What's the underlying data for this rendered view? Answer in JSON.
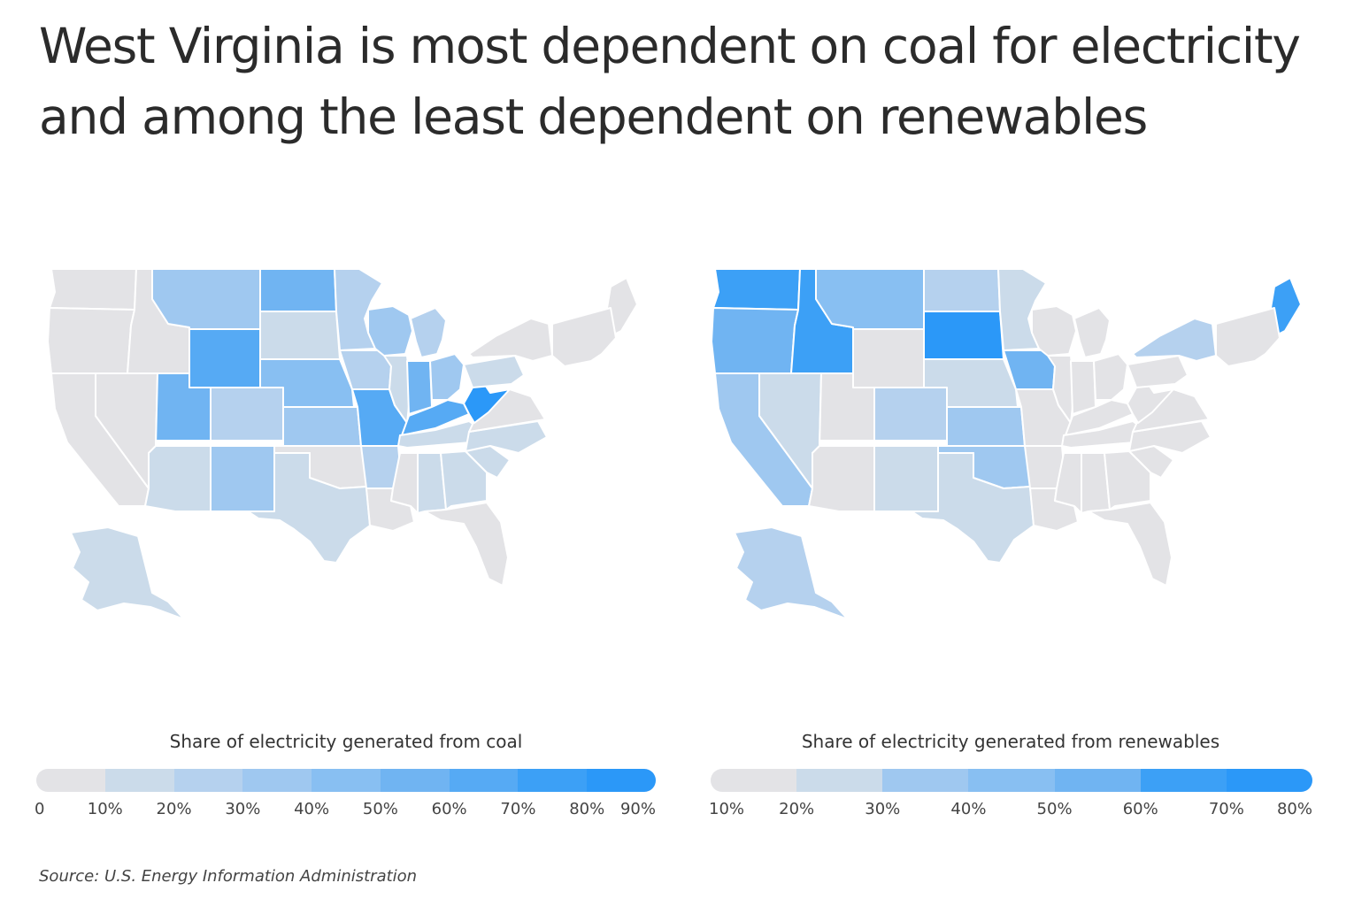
{
  "title_line1": "West Virginia is most dependent on coal for electricity",
  "title_line2": "and among the least dependent on renewables",
  "colors": {
    "scale": [
      "#e3e3e6",
      "#cbdbea",
      "#b5d1ee",
      "#9fc8f0",
      "#88bff2",
      "#70b4f2",
      "#56aaf4",
      "#3ca0f6",
      "#2b98f8"
    ],
    "border": "#ffffff"
  },
  "maps": [
    {
      "id": "coal",
      "legend_title": "Share of electricity generated from coal",
      "ticks": [
        "0",
        "10%",
        "20%",
        "30%",
        "40%",
        "50%",
        "60%",
        "70%",
        "80%",
        "90%"
      ],
      "states": {
        "WA": 0,
        "OR": 0,
        "CA": 0,
        "NV": 0,
        "ID": 0,
        "MT": 3,
        "WY": 6,
        "UT": 5,
        "AZ": 1,
        "CO": 2,
        "NM": 3,
        "ND": 5,
        "SD": 1,
        "NE": 4,
        "KS": 3,
        "OK": 0,
        "TX": 1,
        "MN": 2,
        "IA": 2,
        "MO": 6,
        "AR": 2,
        "LA": 0,
        "WI": 3,
        "IL": 1,
        "MI": 2,
        "IN": 5,
        "OH": 3,
        "KY": 6,
        "TN": 1,
        "MS": 0,
        "AL": 1,
        "GA": 1,
        "FL": 0,
        "SC": 1,
        "NC": 1,
        "VA": 0,
        "WV": 8,
        "PA": 1,
        "NY": 0,
        "ME": 0,
        "NE_STATES": 0,
        "AK": 1
      }
    },
    {
      "id": "renewables",
      "legend_title": "Share of electricity generated from renewables",
      "ticks": [
        "10%",
        "20%",
        "30%",
        "40%",
        "50%",
        "60%",
        "70%",
        "80%"
      ],
      "states": {
        "WA": 7,
        "OR": 5,
        "CA": 3,
        "NV": 1,
        "ID": 7,
        "MT": 4,
        "WY": 0,
        "UT": 0,
        "AZ": 0,
        "CO": 2,
        "NM": 1,
        "ND": 2,
        "SD": 8,
        "NE": 1,
        "KS": 3,
        "OK": 3,
        "TX": 1,
        "MN": 1,
        "IA": 5,
        "MO": 0,
        "AR": 0,
        "LA": 0,
        "WI": 0,
        "IL": 0,
        "MI": 0,
        "IN": 0,
        "OH": 0,
        "KY": 0,
        "TN": 0,
        "MS": 0,
        "AL": 0,
        "GA": 0,
        "FL": 0,
        "SC": 0,
        "NC": 0,
        "VA": 0,
        "WV": 0,
        "PA": 0,
        "NY": 2,
        "ME": 7,
        "NE_STATES": 0,
        "AK": 2
      }
    }
  ],
  "source": "Source:  U.S. Energy Information Administration"
}
